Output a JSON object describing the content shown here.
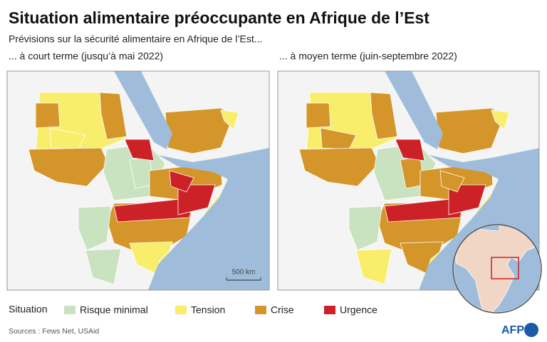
{
  "title": "Situation alimentaire préoccupante en Afrique de l’Est",
  "subtitle": "Prévisions sur la sécurité alimentaire en Afrique de l’Est...",
  "panels": [
    {
      "title": "... à court terme (jusqu’à mai 2022)"
    },
    {
      "title": "... à moyen terme (juin-septembre 2022)"
    }
  ],
  "scale_label": "500 km",
  "legend": {
    "title": "Situation",
    "items": [
      {
        "label": "Risque minimal",
        "color": "#c9e3c1"
      },
      {
        "label": "Tension",
        "color": "#f8ee6c"
      },
      {
        "label": "Crise",
        "color": "#d4962b"
      },
      {
        "label": "Urgence",
        "color": "#cc2127"
      }
    ]
  },
  "source": "Sources : Fews Net, USAid",
  "logo": "AFP"
}
